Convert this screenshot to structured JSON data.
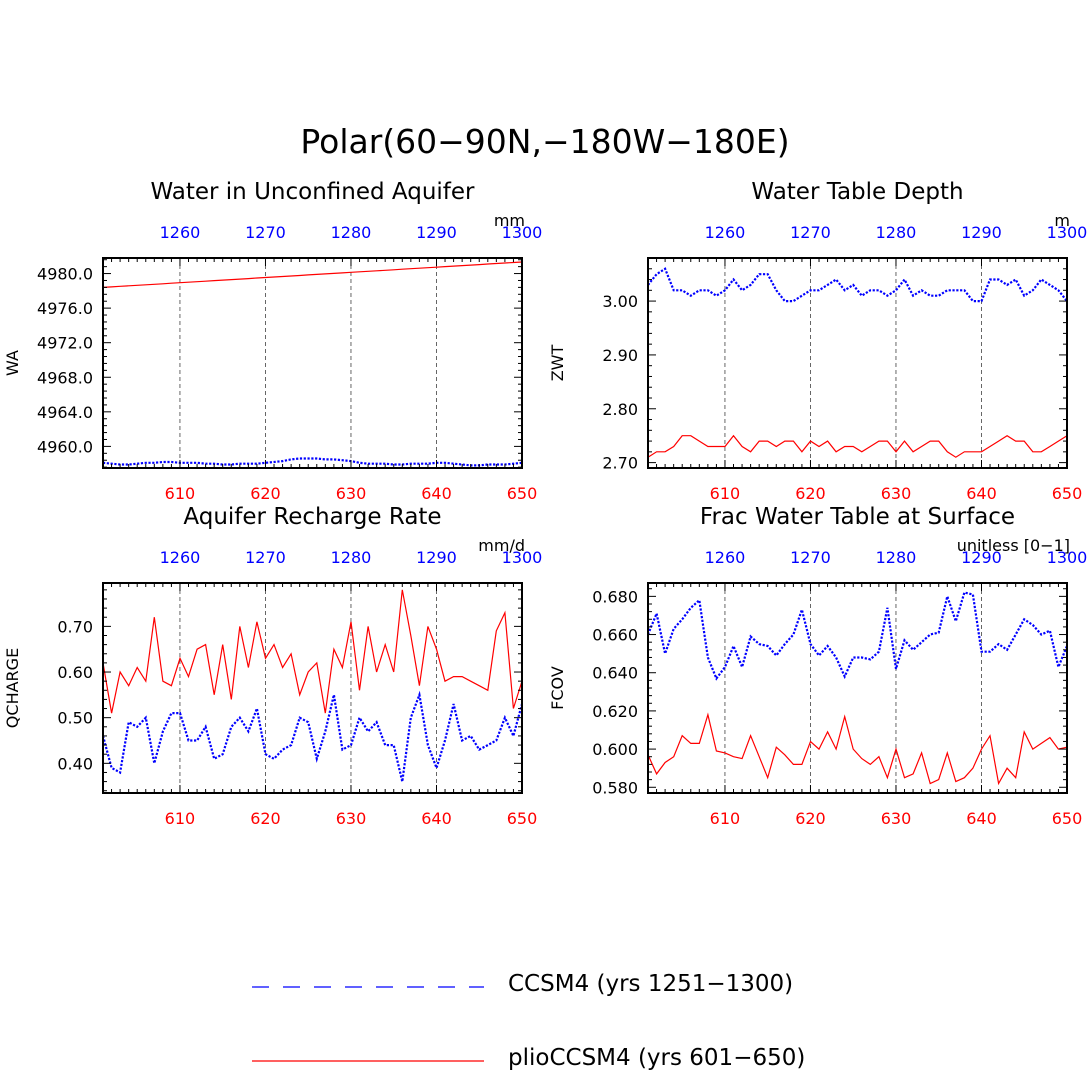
{
  "title": "Polar(60−90N,−180W−180E)",
  "legend": [
    {
      "label": "CCSM4 (yrs 1251−1300)",
      "color": "#0000ff",
      "style": "dashed"
    },
    {
      "label": "plioCCSM4 (yrs 601−650)",
      "color": "#ff0000",
      "style": "solid"
    }
  ],
  "colors": {
    "ccsm4": "#0000ff",
    "plio": "#ff0000",
    "axis": "#000000"
  },
  "chart_data": [
    {
      "type": "line",
      "title": "Water in Unconfined Aquifer",
      "ylabel": "WA",
      "units": "mm",
      "x_bottom": {
        "range": [
          601,
          650
        ],
        "ticks": [
          "610",
          "620",
          "630",
          "640",
          "650"
        ],
        "color": "#ff0000"
      },
      "x_top": {
        "range": [
          1251,
          1300
        ],
        "ticks": [
          "1260",
          "1270",
          "1280",
          "1290",
          "1300"
        ],
        "color": "#0000ff"
      },
      "ylim": [
        4957.5,
        4981.8
      ],
      "yticks": [
        "4960.0",
        "4964.0",
        "4968.0",
        "4972.0",
        "4976.0",
        "4980.0"
      ],
      "series": [
        {
          "name": "CCSM4 (yrs 1251−1300)",
          "color": "#0000ff",
          "dash": true,
          "values": [
            4958.1,
            4958.0,
            4957.9,
            4957.9,
            4958.0,
            4958.1,
            4958.1,
            4958.2,
            4958.2,
            4958.1,
            4958.1,
            4958.1,
            4958.0,
            4958.0,
            4957.9,
            4957.9,
            4958.0,
            4958.0,
            4958.0,
            4958.1,
            4958.2,
            4958.3,
            4958.5,
            4958.6,
            4958.6,
            4958.6,
            4958.5,
            4958.5,
            4958.4,
            4958.3,
            4958.1,
            4958.0,
            4958.0,
            4958.0,
            4957.9,
            4957.9,
            4958.0,
            4958.0,
            4958.0,
            4958.1,
            4958.1,
            4958.0,
            4957.9,
            4957.8,
            4957.8,
            4957.9,
            4957.9,
            4957.9,
            4958.0,
            4958.1
          ]
        },
        {
          "name": "plioCCSM4 (yrs 601−650)",
          "color": "#ff0000",
          "dash": false,
          "values": [
            4978.4,
            4978.46,
            4978.52,
            4978.58,
            4978.64,
            4978.7,
            4978.76,
            4978.82,
            4978.88,
            4978.94,
            4979.0,
            4979.06,
            4979.12,
            4979.18,
            4979.24,
            4979.3,
            4979.36,
            4979.42,
            4979.48,
            4979.54,
            4979.6,
            4979.66,
            4979.72,
            4979.78,
            4979.84,
            4979.9,
            4979.96,
            4980.02,
            4980.08,
            4980.14,
            4980.2,
            4980.26,
            4980.32,
            4980.38,
            4980.44,
            4980.5,
            4980.56,
            4980.62,
            4980.68,
            4980.74,
            4980.8,
            4980.86,
            4980.92,
            4980.98,
            4981.04,
            4981.1,
            4981.16,
            4981.22,
            4981.28,
            4981.34
          ]
        }
      ]
    },
    {
      "type": "line",
      "title": "Water Table Depth",
      "ylabel": "ZWT",
      "units": "m",
      "x_bottom": {
        "range": [
          601,
          650
        ],
        "ticks": [
          "610",
          "620",
          "630",
          "640",
          "650"
        ],
        "color": "#ff0000"
      },
      "x_top": {
        "range": [
          1251,
          1300
        ],
        "ticks": [
          "1260",
          "1270",
          "1280",
          "1290",
          "1300"
        ],
        "color": "#0000ff"
      },
      "ylim": [
        2.69,
        3.08
      ],
      "yticks": [
        "2.70",
        "2.80",
        "2.90",
        "3.00"
      ],
      "series": [
        {
          "name": "CCSM4 (yrs 1251−1300)",
          "color": "#0000ff",
          "dash": true,
          "values": [
            3.03,
            3.05,
            3.06,
            3.02,
            3.02,
            3.01,
            3.02,
            3.02,
            3.01,
            3.02,
            3.04,
            3.02,
            3.03,
            3.05,
            3.05,
            3.02,
            3.0,
            3.0,
            3.01,
            3.02,
            3.02,
            3.03,
            3.04,
            3.02,
            3.03,
            3.01,
            3.02,
            3.02,
            3.01,
            3.02,
            3.04,
            3.01,
            3.02,
            3.01,
            3.01,
            3.02,
            3.02,
            3.02,
            3.0,
            3.0,
            3.04,
            3.04,
            3.03,
            3.04,
            3.01,
            3.02,
            3.04,
            3.03,
            3.02,
            3.0
          ]
        },
        {
          "name": "plioCCSM4 (yrs 601−650)",
          "color": "#ff0000",
          "dash": false,
          "values": [
            2.71,
            2.72,
            2.72,
            2.73,
            2.75,
            2.75,
            2.74,
            2.73,
            2.73,
            2.73,
            2.75,
            2.73,
            2.72,
            2.74,
            2.74,
            2.73,
            2.74,
            2.74,
            2.72,
            2.74,
            2.73,
            2.74,
            2.72,
            2.73,
            2.73,
            2.72,
            2.73,
            2.74,
            2.74,
            2.72,
            2.74,
            2.72,
            2.73,
            2.74,
            2.74,
            2.72,
            2.71,
            2.72,
            2.72,
            2.72,
            2.73,
            2.74,
            2.75,
            2.74,
            2.74,
            2.72,
            2.72,
            2.73,
            2.74,
            2.75
          ]
        }
      ]
    },
    {
      "type": "line",
      "title": "Aquifer Recharge Rate",
      "ylabel": "QCHARGE",
      "units": "mm/d",
      "x_bottom": {
        "range": [
          601,
          650
        ],
        "ticks": [
          "610",
          "620",
          "630",
          "640",
          "650"
        ],
        "color": "#ff0000"
      },
      "x_top": {
        "range": [
          1251,
          1300
        ],
        "ticks": [
          "1260",
          "1270",
          "1280",
          "1290",
          "1300"
        ],
        "color": "#0000ff"
      },
      "ylim": [
        0.335,
        0.795
      ],
      "yticks": [
        "0.40",
        "0.50",
        "0.60",
        "0.70"
      ],
      "series": [
        {
          "name": "CCSM4 (yrs 1251−1300)",
          "color": "#0000ff",
          "dash": true,
          "values": [
            0.46,
            0.39,
            0.38,
            0.49,
            0.48,
            0.5,
            0.4,
            0.47,
            0.51,
            0.51,
            0.45,
            0.45,
            0.48,
            0.41,
            0.42,
            0.48,
            0.5,
            0.47,
            0.52,
            0.42,
            0.41,
            0.43,
            0.44,
            0.5,
            0.49,
            0.41,
            0.47,
            0.55,
            0.43,
            0.44,
            0.5,
            0.47,
            0.49,
            0.44,
            0.44,
            0.36,
            0.5,
            0.55,
            0.44,
            0.39,
            0.45,
            0.53,
            0.45,
            0.46,
            0.43,
            0.44,
            0.45,
            0.5,
            0.46,
            0.53
          ]
        },
        {
          "name": "plioCCSM4 (yrs 601−650)",
          "color": "#ff0000",
          "dash": false,
          "values": [
            0.62,
            0.51,
            0.6,
            0.57,
            0.61,
            0.58,
            0.72,
            0.58,
            0.57,
            0.63,
            0.59,
            0.65,
            0.66,
            0.55,
            0.66,
            0.54,
            0.7,
            0.61,
            0.71,
            0.63,
            0.66,
            0.61,
            0.64,
            0.55,
            0.6,
            0.62,
            0.51,
            0.65,
            0.61,
            0.71,
            0.56,
            0.7,
            0.6,
            0.66,
            0.6,
            0.78,
            0.68,
            0.57,
            0.7,
            0.65,
            0.58,
            0.59,
            0.59,
            0.58,
            0.57,
            0.56,
            0.69,
            0.73,
            0.52,
            0.58
          ]
        }
      ]
    },
    {
      "type": "line",
      "title": "Frac Water Table at Surface",
      "ylabel": "FCOV",
      "units": "unitless [0−1]",
      "x_bottom": {
        "range": [
          601,
          650
        ],
        "ticks": [
          "610",
          "620",
          "630",
          "640",
          "650"
        ],
        "color": "#ff0000"
      },
      "x_top": {
        "range": [
          1251,
          1300
        ],
        "ticks": [
          "1260",
          "1270",
          "1280",
          "1290",
          "1300"
        ],
        "color": "#0000ff"
      },
      "ylim": [
        0.577,
        0.687
      ],
      "yticks": [
        "0.580",
        "0.600",
        "0.620",
        "0.640",
        "0.660",
        "0.680"
      ],
      "series": [
        {
          "name": "CCSM4 (yrs 1251−1300)",
          "color": "#0000ff",
          "dash": true,
          "values": [
            0.66,
            0.671,
            0.65,
            0.663,
            0.668,
            0.674,
            0.678,
            0.648,
            0.637,
            0.643,
            0.654,
            0.643,
            0.659,
            0.655,
            0.654,
            0.649,
            0.655,
            0.66,
            0.673,
            0.655,
            0.649,
            0.654,
            0.648,
            0.638,
            0.648,
            0.648,
            0.647,
            0.651,
            0.674,
            0.642,
            0.657,
            0.652,
            0.656,
            0.66,
            0.661,
            0.68,
            0.667,
            0.682,
            0.681,
            0.651,
            0.651,
            0.655,
            0.652,
            0.66,
            0.668,
            0.665,
            0.66,
            0.662,
            0.643,
            0.654
          ]
        },
        {
          "name": "plioCCSM4 (yrs 601−650)",
          "color": "#ff0000",
          "dash": false,
          "values": [
            0.597,
            0.587,
            0.593,
            0.596,
            0.607,
            0.603,
            0.603,
            0.618,
            0.599,
            0.598,
            0.596,
            0.595,
            0.607,
            0.596,
            0.585,
            0.601,
            0.597,
            0.592,
            0.592,
            0.604,
            0.6,
            0.609,
            0.6,
            0.617,
            0.6,
            0.595,
            0.592,
            0.596,
            0.585,
            0.6,
            0.585,
            0.587,
            0.598,
            0.582,
            0.584,
            0.598,
            0.583,
            0.585,
            0.59,
            0.6,
            0.607,
            0.582,
            0.59,
            0.585,
            0.609,
            0.6,
            0.603,
            0.606,
            0.6,
            0.601
          ]
        }
      ]
    }
  ]
}
